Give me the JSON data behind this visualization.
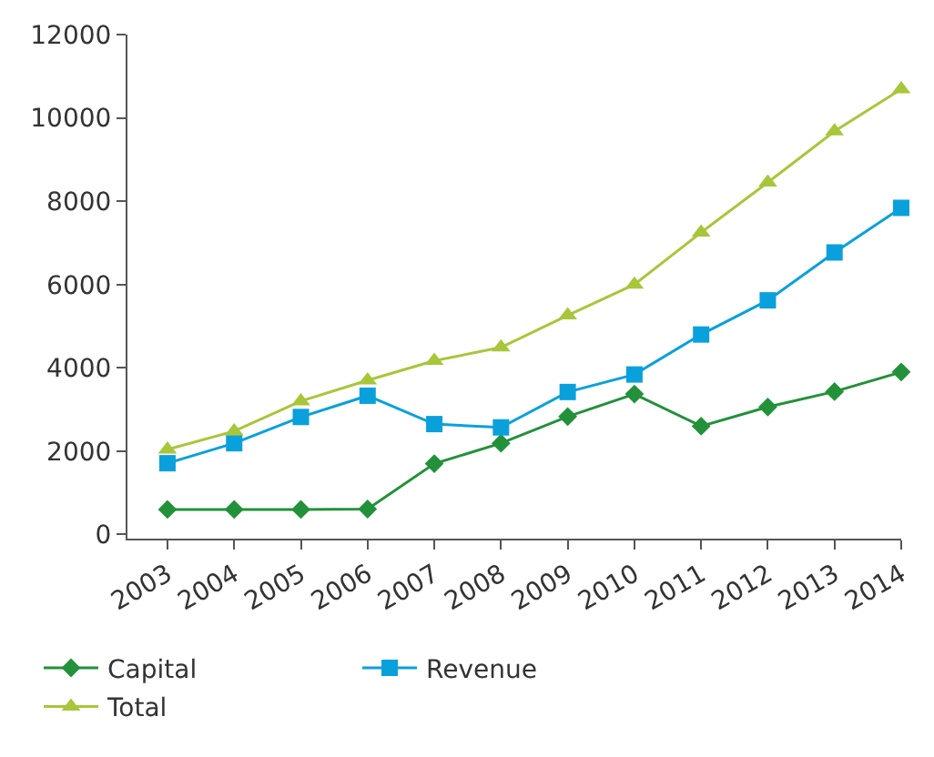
{
  "chart_data": {
    "type": "line",
    "categories": [
      "2003",
      "2004",
      "2005",
      "2006",
      "2007",
      "2008",
      "2009",
      "2010",
      "2011",
      "2012",
      "2013",
      "2014"
    ],
    "series": [
      {
        "name": "Capital",
        "color": "#23913a",
        "marker": "diamond",
        "values": [
          600,
          600,
          600,
          610,
          1700,
          2190,
          2830,
          3370,
          2600,
          3060,
          3430,
          3900
        ]
      },
      {
        "name": "Revenue",
        "color": "#0aa0dc",
        "marker": "square",
        "values": [
          1710,
          2190,
          2820,
          3330,
          2650,
          2570,
          3420,
          3840,
          4800,
          5620,
          6770,
          7840
        ]
      },
      {
        "name": "Total",
        "color": "#a8c63a",
        "marker": "triangle",
        "values": [
          2040,
          2480,
          3200,
          3700,
          4170,
          4490,
          5260,
          6000,
          7250,
          8450,
          9680,
          10690
        ]
      }
    ],
    "ylim": [
      -100,
      12000
    ],
    "yticks": [
      0,
      2000,
      4000,
      6000,
      8000,
      10000,
      12000
    ],
    "legend": "bottom"
  }
}
